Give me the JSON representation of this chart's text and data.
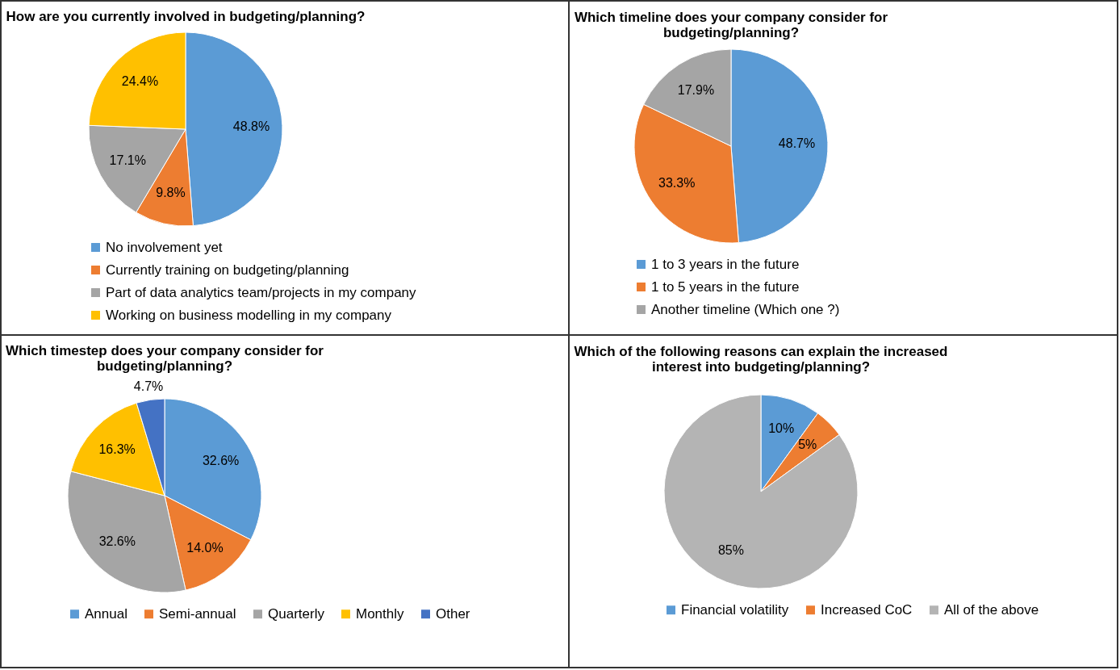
{
  "chart_data": [
    {
      "type": "pie",
      "title": "How are you currently involved in budgeting/planning?",
      "categories": [
        "No involvement yet",
        "Currently training on budgeting/planning",
        "Part of data analytics team/projects in my company",
        "Working on business modelling in my company"
      ],
      "values": [
        48.8,
        9.8,
        17.1,
        24.4
      ],
      "colors": [
        "#5b9bd5",
        "#ed7d31",
        "#a5a5a5",
        "#ffc000"
      ],
      "value_labels": [
        "48.8%",
        "9.8%",
        "17.1%",
        "24.4%"
      ],
      "legend": "bottom"
    },
    {
      "type": "pie",
      "title": "Which timeline does your company consider for budgeting/planning?",
      "categories": [
        "1 to 3 years in the future",
        "1 to 5 years in the future",
        "Another timeline (Which one ?)"
      ],
      "values": [
        48.7,
        33.3,
        17.9
      ],
      "colors": [
        "#5b9bd5",
        "#ed7d31",
        "#a5a5a5"
      ],
      "value_labels": [
        "48.7%",
        "33.3%",
        "17.9%"
      ],
      "legend": "bottom"
    },
    {
      "type": "pie",
      "title": "Which timestep does your company consider for budgeting/planning?",
      "categories": [
        "Annual",
        "Semi-annual",
        "Quarterly",
        "Monthly",
        "Other"
      ],
      "values": [
        32.6,
        14.0,
        32.6,
        16.3,
        4.7
      ],
      "colors": [
        "#5b9bd5",
        "#ed7d31",
        "#a5a5a5",
        "#ffc000",
        "#4472c4"
      ],
      "value_labels": [
        "32.6%",
        "14.0%",
        "32.6%",
        "16.3%",
        "4.7%"
      ],
      "legend": "bottom"
    },
    {
      "type": "pie",
      "title": "Which of the following reasons can explain the increased interest into budgeting/planning?",
      "categories": [
        "Financial volatility",
        "Increased CoC",
        "All of the above"
      ],
      "values": [
        10,
        5,
        85
      ],
      "colors": [
        "#5b9bd5",
        "#ed7d31",
        "#b4b4b4"
      ],
      "value_labels": [
        "10%",
        "5%",
        "85%"
      ],
      "legend": "bottom"
    }
  ]
}
